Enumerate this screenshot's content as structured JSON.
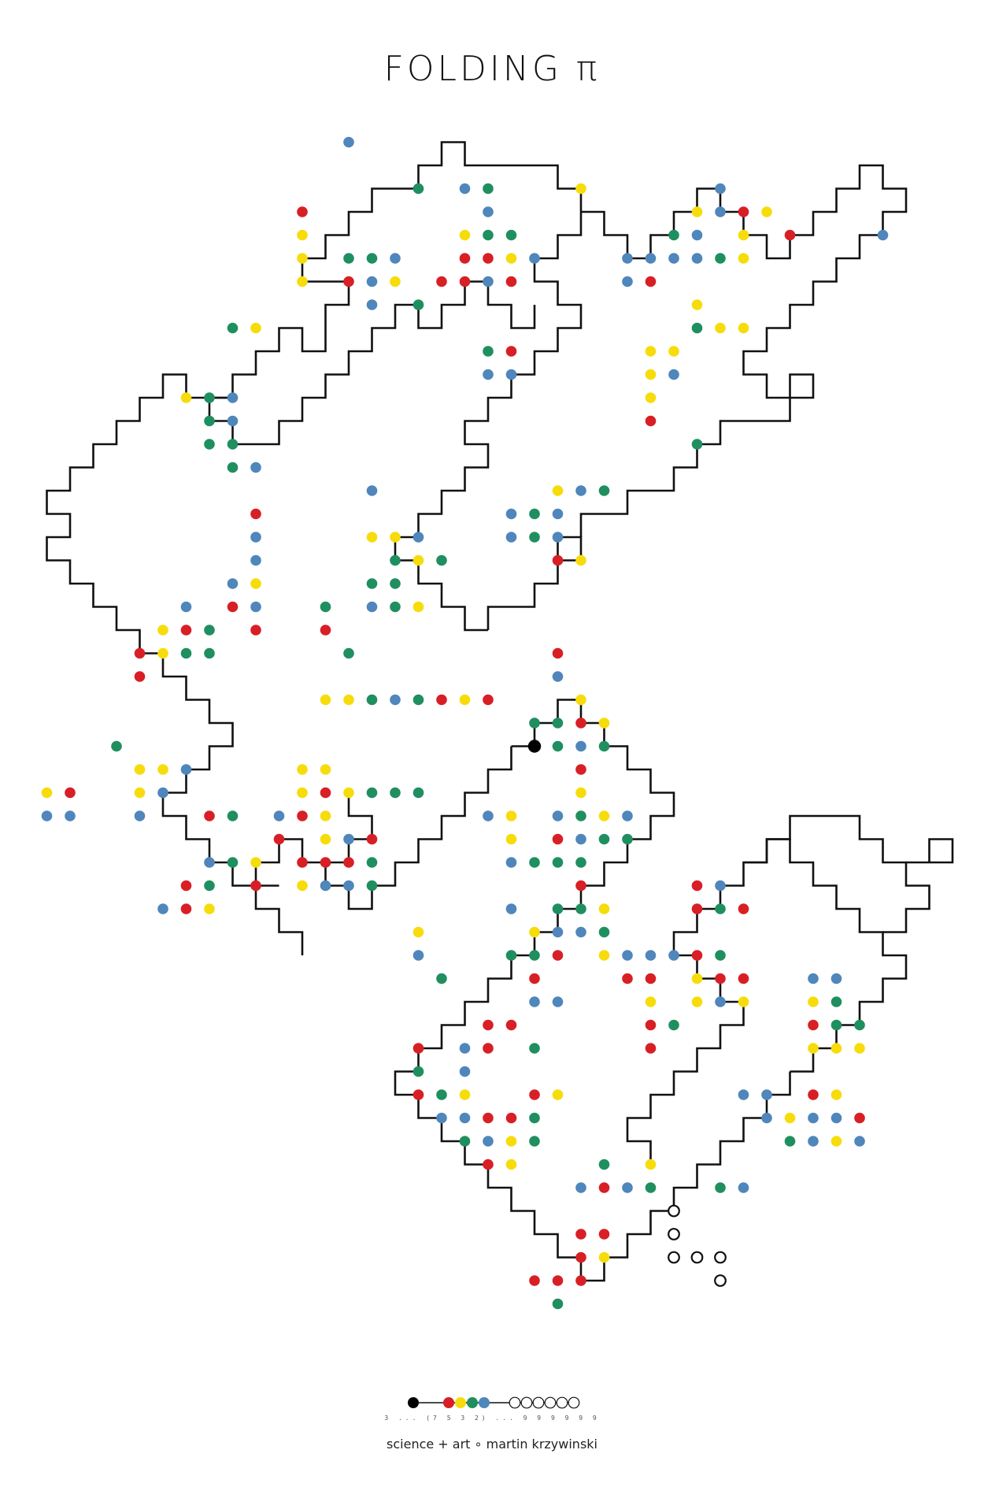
{
  "title": "FOLDING π",
  "legend": {
    "digits": "3 ... (7 5 3 2) ... 9 9 9 9 9 9"
  },
  "credit": "science + art  ∘  martin krzywinski",
  "colors": {
    "line": "#111111",
    "start": "#000000",
    "d2": "#4f86bb",
    "d3": "#1f8f60",
    "d5": "#f7dc0c",
    "d7": "#d81f26",
    "nine": "#ffffff"
  }
}
